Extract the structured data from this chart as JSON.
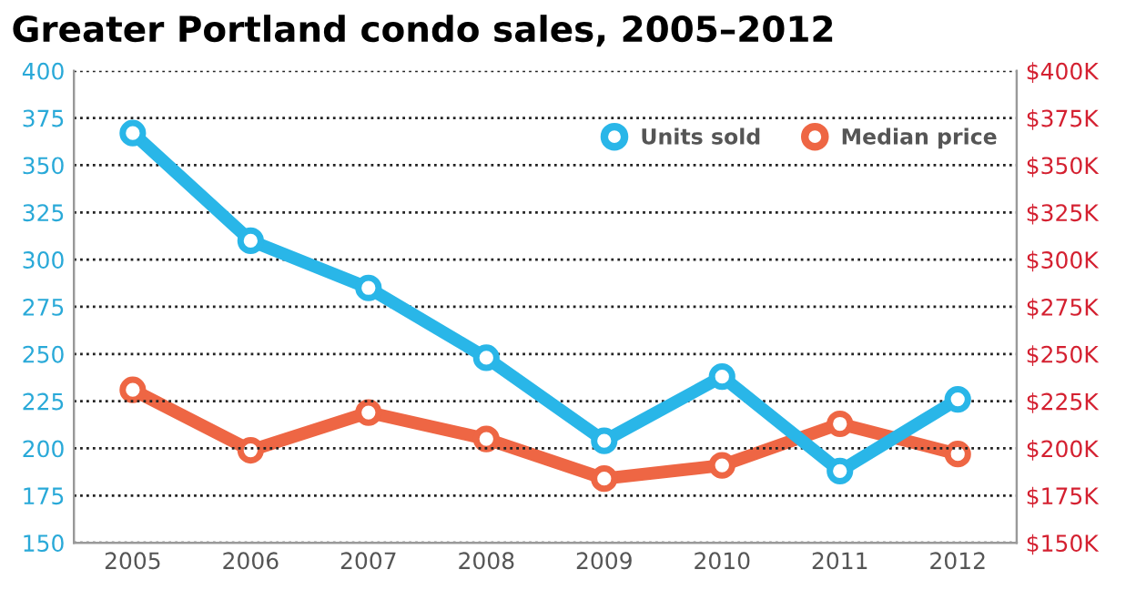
{
  "chart_data": {
    "type": "line",
    "title": "Greater Portland condo sales, 2005–2012",
    "categories": [
      "2005",
      "2006",
      "2007",
      "2008",
      "2009",
      "2010",
      "2011",
      "2012"
    ],
    "series": [
      {
        "name": "Units sold",
        "color": "#29b6e8",
        "values": [
          367,
          310,
          285,
          248,
          204,
          238,
          188,
          226
        ]
      },
      {
        "name": "Median price",
        "color": "#ee6644",
        "axis": "y2",
        "values": [
          231000,
          199000,
          219000,
          205000,
          184000,
          191000,
          213000,
          197000
        ]
      }
    ],
    "ylim": [
      150,
      400
    ],
    "yticks": [
      150,
      175,
      200,
      225,
      250,
      275,
      300,
      325,
      350,
      375,
      400
    ],
    "y2lim": [
      150000,
      400000
    ],
    "y2ticks": [
      {
        "value": 150000,
        "label": "$150K"
      },
      {
        "value": 175000,
        "label": "$175K"
      },
      {
        "value": 200000,
        "label": "$200K"
      },
      {
        "value": 225000,
        "label": "$225K"
      },
      {
        "value": 250000,
        "label": "$250K"
      },
      {
        "value": 275000,
        "label": "$275K"
      },
      {
        "value": 300000,
        "label": "$300K"
      },
      {
        "value": 325000,
        "label": "$325K"
      },
      {
        "value": 350000,
        "label": "$350K"
      },
      {
        "value": 375000,
        "label": "$375K"
      },
      {
        "value": 400000,
        "label": "$400K"
      }
    ],
    "grid": "y",
    "legend": "top right",
    "marker": "circle",
    "line_style": "solid"
  }
}
